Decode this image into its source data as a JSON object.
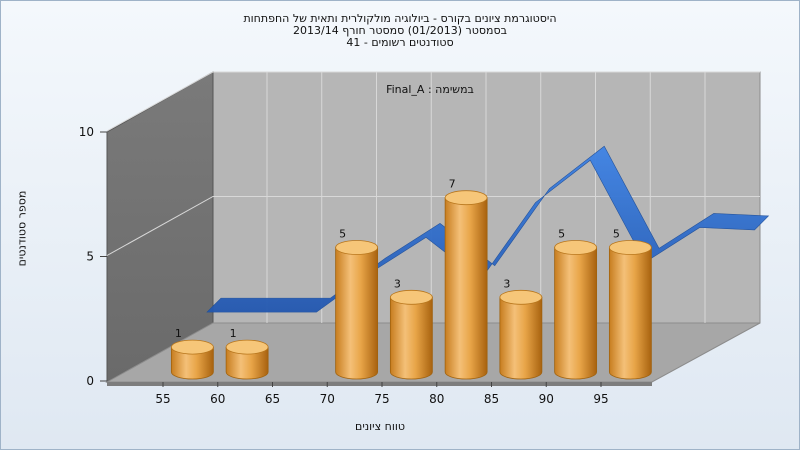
{
  "title_lines": [
    "היסטוגרמת ציונים בקורס - ביולוגיה מולקולרית ותאית של החפתחות",
    "בסמסטר  (01/2013)  סמסטר חורף 2013/14",
    "סטודנטים רשומים - 41"
  ],
  "chart_data": {
    "type": "bar",
    "annotation": "במשימה : Final_A",
    "xlabel": "טווח ציונים",
    "ylabel": "מספר סטודנטים",
    "x_ticks": [
      "55",
      "60",
      "65",
      "70",
      "75",
      "80",
      "85",
      "90",
      "95"
    ],
    "y_ticks": [
      "0",
      "5",
      "10"
    ],
    "ylim": [
      0,
      10
    ],
    "bars": [
      {
        "x": 57.5,
        "value": 1
      },
      {
        "x": 62.5,
        "value": 1
      },
      {
        "x": 72.5,
        "value": 5
      },
      {
        "x": 77.5,
        "value": 3
      },
      {
        "x": 82.5,
        "value": 7
      },
      {
        "x": 87.5,
        "value": 3
      },
      {
        "x": 92.5,
        "value": 5
      },
      {
        "x": 97.5,
        "value": 5
      }
    ],
    "curve": {
      "x": [
        55,
        60,
        65,
        70,
        75,
        80,
        85,
        90,
        95,
        100,
        105
      ],
      "values": [
        1.2,
        1.2,
        1.2,
        2.8,
        4.2,
        2.5,
        5.6,
        7.3,
        3.2,
        4.6,
        4.5
      ]
    },
    "bar_color": "#e8a548",
    "curve_color": "#2f6fcf",
    "grid": true
  }
}
